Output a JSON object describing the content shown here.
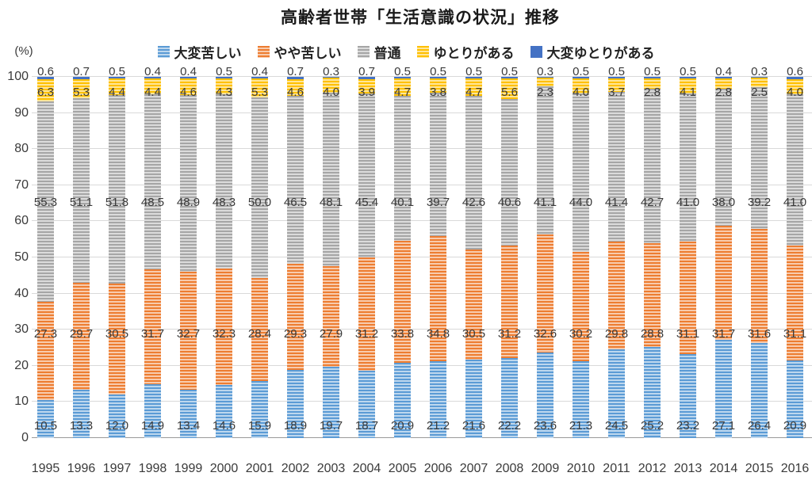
{
  "title": "高齢者世帯「生活意識の状況」推移",
  "y_axis_unit": "(%)",
  "chart_data": {
    "type": "bar",
    "stacked": true,
    "stack_unit": "percent",
    "grid": true,
    "legend_position": "top",
    "ylim": [
      0,
      100
    ],
    "yticks": [
      0,
      10,
      20,
      30,
      40,
      50,
      60,
      70,
      80,
      90,
      100
    ],
    "categories": [
      "1995",
      "1996",
      "1997",
      "1998",
      "1999",
      "2000",
      "2001",
      "2002",
      "2003",
      "2004",
      "2005",
      "2006",
      "2007",
      "2008",
      "2009",
      "2010",
      "2011",
      "2012",
      "2013",
      "2014",
      "2015",
      "2016"
    ],
    "series": [
      {
        "name": "大変苦しい",
        "color": "#5b9bd5",
        "light_color": "#bdd7ee",
        "pattern": "horizontal-stripes",
        "values": [
          10.5,
          13.3,
          12.0,
          14.9,
          13.4,
          14.6,
          15.9,
          18.9,
          19.7,
          18.7,
          20.9,
          21.2,
          21.6,
          22.2,
          23.6,
          21.3,
          24.5,
          25.2,
          23.2,
          27.1,
          26.4,
          20.9
        ]
      },
      {
        "name": "やや苦しい",
        "color": "#ed7d31",
        "light_color": "#f8cbad",
        "pattern": "horizontal-stripes",
        "values": [
          27.3,
          29.7,
          30.5,
          31.7,
          32.7,
          32.3,
          28.4,
          29.3,
          27.9,
          31.2,
          33.8,
          34.8,
          30.5,
          31.2,
          32.6,
          30.2,
          29.8,
          28.8,
          31.1,
          31.7,
          31.6,
          31.1
        ]
      },
      {
        "name": "普通",
        "color": "#a6a6a6",
        "light_color": "#dbdbdb",
        "pattern": "horizontal-stripes",
        "values": [
          55.3,
          51.1,
          51.8,
          48.5,
          48.9,
          48.3,
          50.0,
          46.5,
          48.1,
          45.4,
          40.1,
          39.7,
          42.6,
          40.6,
          41.1,
          44.0,
          41.4,
          42.7,
          41.0,
          38.0,
          39.2,
          41.0
        ]
      },
      {
        "name": "ゆとりがある",
        "color": "#ffc000",
        "light_color": "#ffe699",
        "pattern": "horizontal-stripes",
        "values": [
          6.3,
          5.3,
          4.4,
          4.4,
          4.6,
          4.3,
          5.3,
          4.6,
          4.0,
          3.9,
          4.7,
          3.8,
          4.7,
          5.6,
          2.3,
          4.0,
          3.7,
          2.8,
          4.1,
          2.8,
          2.5,
          4.0
        ]
      },
      {
        "name": "大変ゆとりがある",
        "color": "#4472c4",
        "light_color": "#4472c4",
        "pattern": "solid",
        "values": [
          0.6,
          0.7,
          0.5,
          0.4,
          0.4,
          0.5,
          0.4,
          0.7,
          0.3,
          0.7,
          0.5,
          0.5,
          0.5,
          0.5,
          0.3,
          0.5,
          0.5,
          0.5,
          0.5,
          0.4,
          0.3,
          0.6
        ]
      }
    ]
  }
}
